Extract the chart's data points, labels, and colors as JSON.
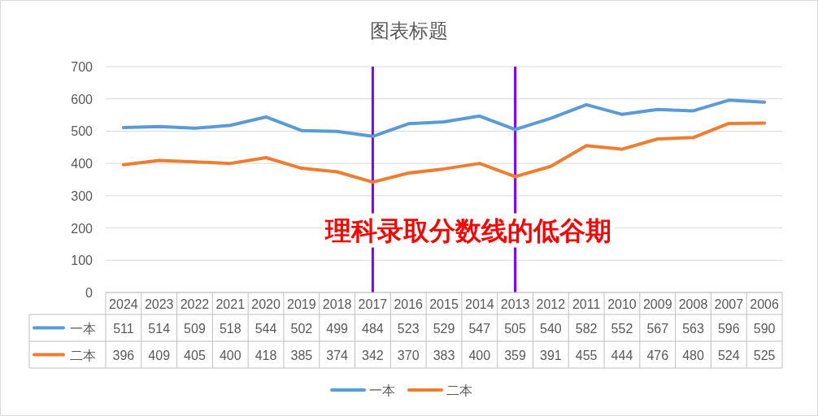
{
  "chart_data": {
    "type": "line",
    "title": "图表标题",
    "categories": [
      "2024",
      "2023",
      "2022",
      "2021",
      "2020",
      "2019",
      "2018",
      "2017",
      "2016",
      "2015",
      "2014",
      "2013",
      "2012",
      "2011",
      "2010",
      "2009",
      "2008",
      "2007",
      "2006"
    ],
    "series": [
      {
        "name": "一本",
        "color": "#5b9bd5",
        "values": [
          511,
          514,
          509,
          518,
          544,
          502,
          499,
          484,
          523,
          529,
          547,
          505,
          540,
          582,
          552,
          567,
          563,
          596,
          590
        ]
      },
      {
        "name": "二本",
        "color": "#ed7d31",
        "values": [
          396,
          409,
          405,
          400,
          418,
          385,
          374,
          342,
          370,
          383,
          400,
          359,
          391,
          455,
          444,
          476,
          480,
          524,
          525
        ]
      }
    ],
    "ylim": [
      0,
      700
    ],
    "yticks": [
      0,
      100,
      200,
      300,
      400,
      500,
      600,
      700
    ],
    "grid": "y",
    "legend": "bottom",
    "data_labels": true,
    "line_style": "solid",
    "annotations": [
      "理科录取分数线的低谷期"
    ],
    "ref_lines": [
      {
        "axis": "x",
        "value": "2017",
        "color": "#8000ff"
      },
      {
        "axis": "x",
        "value": "2013",
        "color": "#8000ff"
      }
    ]
  }
}
